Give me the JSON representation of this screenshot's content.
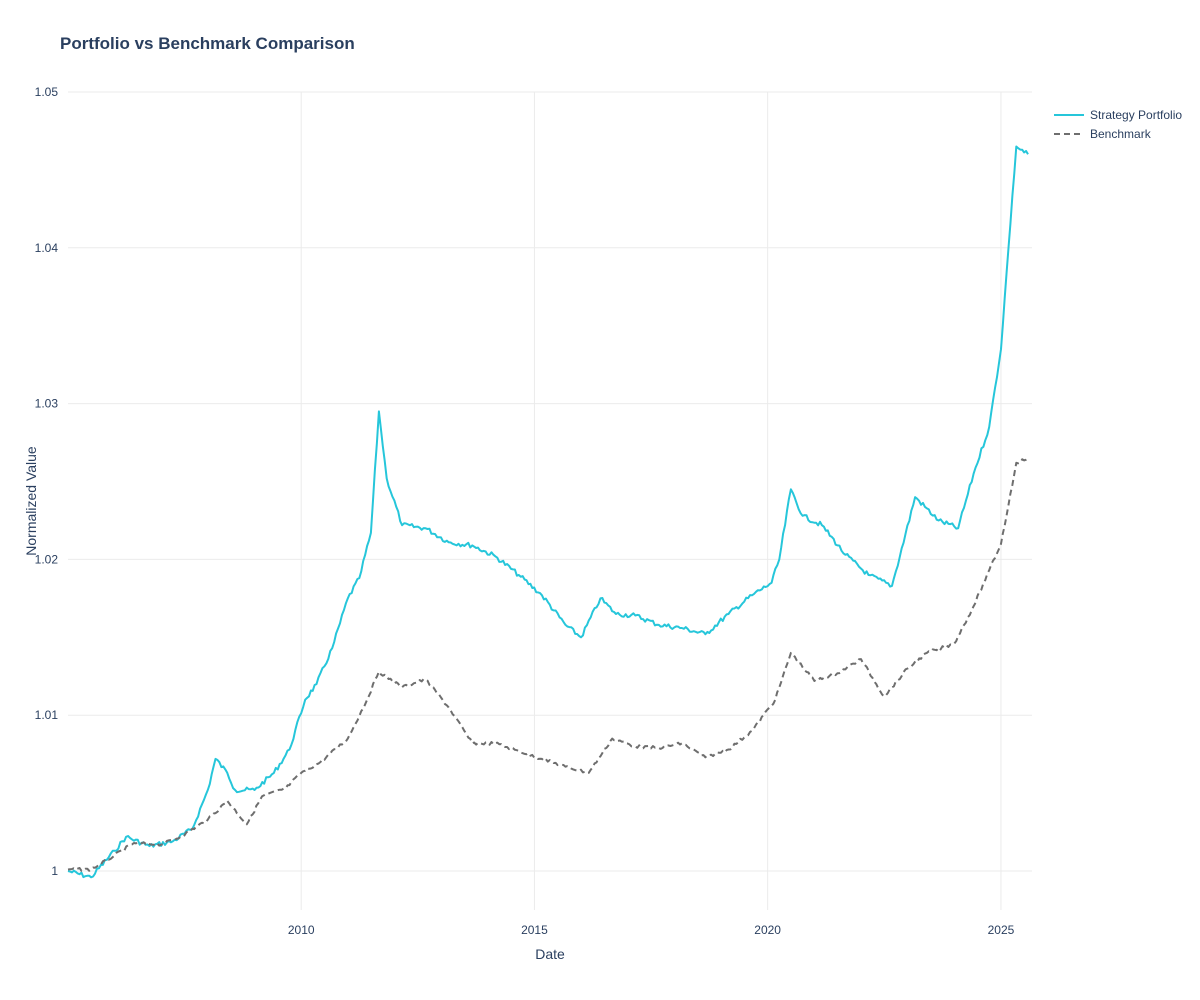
{
  "chart_data": {
    "type": "line",
    "title": "Portfolio vs Benchmark Comparison",
    "xlabel": "Date",
    "ylabel": "Normalized Value",
    "x_axis": {
      "type": "date",
      "range": [
        "2005-01-01",
        "2025-09-01"
      ],
      "tick_labels": [
        "2010",
        "2015",
        "2020",
        "2025"
      ]
    },
    "y_axis": {
      "range": [
        0.9975,
        1.05
      ],
      "tick_labels": [
        "1",
        "1.01",
        "1.02",
        "1.03",
        "1.04",
        "1.05"
      ]
    },
    "grid": true,
    "legend_position": "top-right",
    "series": [
      {
        "name": "Strategy Portfolio",
        "color": "#26c6da",
        "dash": "solid",
        "x": [
          "2005-01-01",
          "2005-07-01",
          "2006-01-01",
          "2006-04-01",
          "2006-10-01",
          "2007-04-01",
          "2007-09-01",
          "2008-01-01",
          "2008-03-01",
          "2008-06-01",
          "2008-08-01",
          "2009-01-01",
          "2009-06-01",
          "2009-10-01",
          "2010-02-01",
          "2010-05-01",
          "2010-09-01",
          "2011-01-01",
          "2011-04-01",
          "2011-07-01",
          "2011-09-01",
          "2011-11-01",
          "2012-03-01",
          "2012-09-01",
          "2013-03-01",
          "2013-09-01",
          "2014-03-01",
          "2014-09-01",
          "2015-03-01",
          "2015-09-01",
          "2016-01-01",
          "2016-06-01",
          "2016-10-01",
          "2017-03-01",
          "2017-09-01",
          "2018-03-01",
          "2018-09-01",
          "2019-03-01",
          "2019-09-01",
          "2020-02-01",
          "2020-04-01",
          "2020-07-01",
          "2020-10-01",
          "2021-03-01",
          "2021-09-01",
          "2022-03-01",
          "2022-09-01",
          "2023-03-01",
          "2023-09-01",
          "2024-02-01",
          "2024-06-01",
          "2024-10-01",
          "2025-01-01",
          "2025-03-01",
          "2025-05-01",
          "2025-08-01"
        ],
        "y": [
          1.0,
          0.9996,
          1.0013,
          1.0022,
          1.0016,
          1.0019,
          1.0027,
          1.0052,
          1.0072,
          1.0063,
          1.0052,
          1.0052,
          1.0063,
          1.0078,
          1.011,
          1.012,
          1.0143,
          1.0175,
          1.0188,
          1.0217,
          1.0295,
          1.0252,
          1.0222,
          1.022,
          1.0211,
          1.0209,
          1.0202,
          1.019,
          1.0177,
          1.0158,
          1.015,
          1.0175,
          1.0165,
          1.0164,
          1.0158,
          1.0156,
          1.0152,
          1.0165,
          1.0177,
          1.0185,
          1.02,
          1.0245,
          1.0228,
          1.0222,
          1.0203,
          1.019,
          1.0183,
          1.024,
          1.0225,
          1.022,
          1.0255,
          1.0285,
          1.0335,
          1.04,
          1.0465,
          1.046
        ]
      },
      {
        "name": "Benchmark",
        "color": "#6e6e6e",
        "dash": "dash",
        "x": [
          "2005-01-01",
          "2005-07-01",
          "2006-01-01",
          "2006-06-01",
          "2007-01-01",
          "2007-06-01",
          "2008-01-01",
          "2008-06-01",
          "2008-11-01",
          "2009-03-01",
          "2009-09-01",
          "2010-01-01",
          "2010-06-01",
          "2011-01-01",
          "2011-06-01",
          "2011-09-01",
          "2012-03-01",
          "2012-09-01",
          "2013-03-01",
          "2013-09-01",
          "2014-03-01",
          "2014-09-01",
          "2015-03-01",
          "2015-09-01",
          "2016-03-01",
          "2016-09-01",
          "2017-03-01",
          "2017-09-01",
          "2018-03-01",
          "2018-09-01",
          "2019-03-01",
          "2019-09-01",
          "2020-03-01",
          "2020-07-01",
          "2021-01-01",
          "2021-07-01",
          "2022-01-01",
          "2022-07-01",
          "2023-01-01",
          "2023-06-01",
          "2024-01-01",
          "2024-06-01",
          "2024-10-01",
          "2025-01-01",
          "2025-03-01",
          "2025-05-01",
          "2025-08-01"
        ],
        "y": [
          1.0001,
          1.0001,
          1.001,
          1.0018,
          1.0017,
          1.0022,
          1.0033,
          1.0045,
          1.003,
          1.0048,
          1.0053,
          1.0063,
          1.007,
          1.0085,
          1.011,
          1.0128,
          1.0118,
          1.0123,
          1.0105,
          1.0082,
          1.0082,
          1.0077,
          1.0072,
          1.0067,
          1.0063,
          1.0085,
          1.008,
          1.0079,
          1.0082,
          1.0073,
          1.0078,
          1.009,
          1.011,
          1.014,
          1.0122,
          1.0127,
          1.0136,
          1.0112,
          1.013,
          1.014,
          1.0146,
          1.017,
          1.0193,
          1.021,
          1.0235,
          1.0262,
          1.0265
        ]
      }
    ]
  }
}
